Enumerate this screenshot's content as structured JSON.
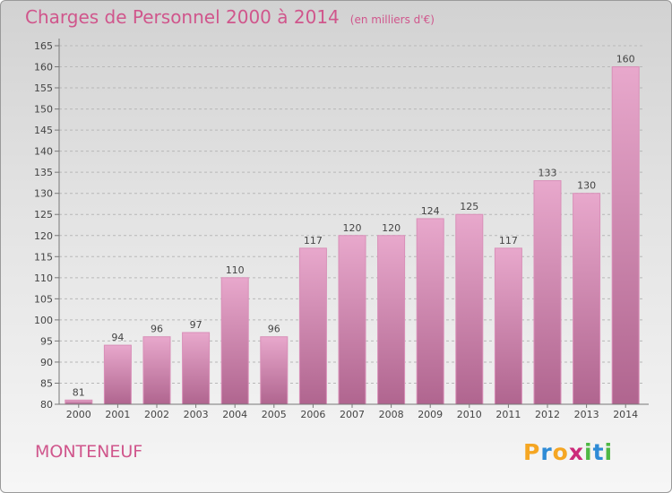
{
  "title": "Charges de Personnel 2000 à 2014",
  "title_unit": "(en milliers d'€)",
  "place": "MONTENEUF",
  "logo": {
    "letters": [
      "P",
      "r",
      "o",
      "x",
      "i",
      "t",
      "i"
    ],
    "colors": [
      "#f5a623",
      "#2e8bd6",
      "#f5a623",
      "#cc2a7a",
      "#4fb845",
      "#2e8bd6",
      "#4fb845"
    ]
  },
  "colors": {
    "bar_top": "#e8a8cc",
    "bar_bottom": "#b0658f",
    "bar_edge": "#d98fb8",
    "accent": "#d0568c"
  },
  "chart_data": {
    "type": "bar",
    "categories": [
      "2000",
      "2001",
      "2002",
      "2003",
      "2004",
      "2005",
      "2006",
      "2007",
      "2008",
      "2009",
      "2010",
      "2011",
      "2012",
      "2013",
      "2014"
    ],
    "values": [
      81,
      94,
      96,
      97,
      110,
      96,
      117,
      120,
      120,
      124,
      125,
      117,
      133,
      130,
      160
    ],
    "y_ticks": [
      80,
      85,
      90,
      95,
      100,
      105,
      110,
      115,
      120,
      125,
      130,
      135,
      140,
      145,
      150,
      155,
      160,
      165
    ],
    "ylim": [
      80,
      165
    ],
    "grid": "horizontal dashed",
    "title": "Charges de Personnel 2000 à 2014",
    "xlabel": "",
    "ylabel": ""
  }
}
